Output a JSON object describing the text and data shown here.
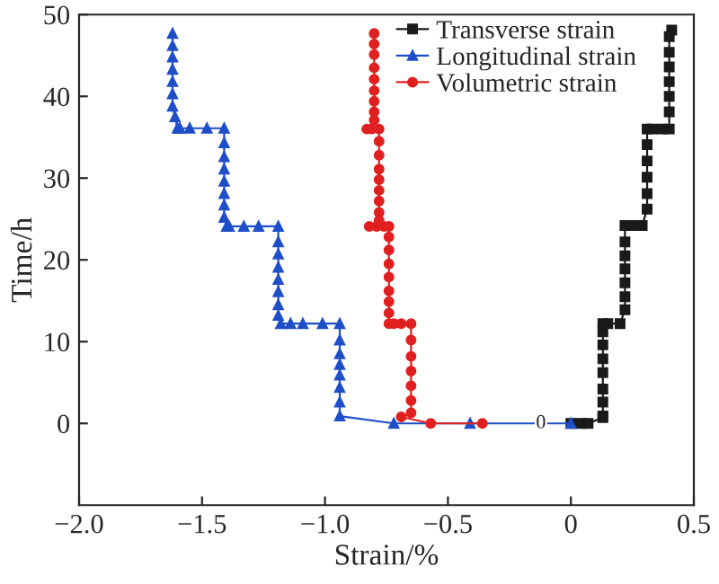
{
  "chart_data": {
    "type": "line",
    "xlabel": "Strain/%",
    "ylabel": "Time/h",
    "xlim": [
      -2.0,
      0.5
    ],
    "ylim": [
      -10,
      50
    ],
    "xticks": [
      {
        "value": -2.0,
        "label": "−2.0"
      },
      {
        "value": -1.5,
        "label": "−1.5"
      },
      {
        "value": -1.0,
        "label": "−1.0"
      },
      {
        "value": -0.5,
        "label": "−0.5"
      },
      0,
      0.5
    ],
    "yticks": [
      0,
      10,
      20,
      30,
      40,
      50
    ],
    "grid": false,
    "legend": "top right",
    "annotations": [
      {
        "text": "0",
        "x": 0,
        "y": 0
      }
    ],
    "series": [
      {
        "name": "Transverse strain",
        "color": "#1a1a1a",
        "marker": "square",
        "x": [
          0,
          0.04,
          0.07,
          0.13,
          0.13,
          0.13,
          0.13,
          0.13,
          0.13,
          0.13,
          0.13,
          0.13,
          0.15,
          0.2,
          0.22,
          0.22,
          0.22,
          0.22,
          0.22,
          0.22,
          0.22,
          0.26,
          0.29,
          0.31,
          0.31,
          0.31,
          0.31,
          0.31,
          0.31,
          0.33,
          0.37,
          0.4,
          0.4,
          0.4,
          0.4,
          0.4,
          0.4,
          0.4,
          0.41
        ],
        "values": [
          0,
          0,
          0,
          0.7,
          0.9,
          2.6,
          4.2,
          6.2,
          7.9,
          9.6,
          11.2,
          12.2,
          12.2,
          12.2,
          13.9,
          15.5,
          17.2,
          18.9,
          20.5,
          22.2,
          24.2,
          24.2,
          24.2,
          26.2,
          28.1,
          30.1,
          32.1,
          34.1,
          36.0,
          36.0,
          36.0,
          36.0,
          38.1,
          40.0,
          41.8,
          43.6,
          45.4,
          47.3,
          48.1
        ]
      },
      {
        "name": "Longitudinal strain",
        "color": "#1f4fc8",
        "marker": "triangle",
        "x": [
          -1.62,
          -1.62,
          -1.62,
          -1.62,
          -1.62,
          -1.62,
          -1.62,
          -1.61,
          -1.6,
          -1.59,
          -1.55,
          -1.48,
          -1.41,
          -1.41,
          -1.41,
          -1.41,
          -1.41,
          -1.41,
          -1.41,
          -1.41,
          -1.4,
          -1.39,
          -1.33,
          -1.27,
          -1.19,
          -1.19,
          -1.19,
          -1.19,
          -1.19,
          -1.19,
          -1.19,
          -1.19,
          -1.18,
          -1.14,
          -1.09,
          -1.01,
          -0.94,
          -0.94,
          -0.94,
          -0.94,
          -0.94,
          -0.94,
          -0.94,
          -0.94,
          -0.72,
          -0.41,
          0
        ],
        "values": [
          47.7,
          46.2,
          44.8,
          43.3,
          41.8,
          40.3,
          38.8,
          37.5,
          36.1,
          36.1,
          36.1,
          36.1,
          36.1,
          34.3,
          32.6,
          31.1,
          29.6,
          28.1,
          26.7,
          25.2,
          24.1,
          24.1,
          24.1,
          24.1,
          24.1,
          22.2,
          20.7,
          19.1,
          17.6,
          16.1,
          14.5,
          13.2,
          12.2,
          12.2,
          12.2,
          12.2,
          12.2,
          10.2,
          8.5,
          7.2,
          5.9,
          4.4,
          2.6,
          0.9,
          0,
          0,
          0
        ]
      },
      {
        "name": "Volumetric strain",
        "color": "#e02020",
        "marker": "circle",
        "x": [
          -0.8,
          -0.8,
          -0.8,
          -0.8,
          -0.8,
          -0.8,
          -0.8,
          -0.8,
          -0.8,
          -0.83,
          -0.81,
          -0.78,
          -0.78,
          -0.78,
          -0.78,
          -0.78,
          -0.78,
          -0.78,
          -0.78,
          -0.78,
          -0.82,
          -0.79,
          -0.76,
          -0.74,
          -0.74,
          -0.74,
          -0.74,
          -0.74,
          -0.74,
          -0.74,
          -0.74,
          -0.74,
          -0.72,
          -0.69,
          -0.65,
          -0.65,
          -0.65,
          -0.65,
          -0.65,
          -0.65,
          -0.65,
          -0.69,
          -0.57,
          -0.36
        ],
        "values": [
          47.7,
          46.4,
          45.1,
          43.5,
          42.1,
          40.7,
          39.4,
          38.1,
          37.1,
          36.0,
          36.0,
          36.0,
          34.5,
          32.8,
          31.1,
          29.8,
          28.5,
          27.2,
          25.8,
          24.8,
          24.1,
          24.1,
          24.1,
          24.1,
          22.8,
          21.2,
          19.5,
          17.9,
          16.2,
          14.9,
          13.5,
          12.2,
          12.2,
          12.2,
          12.2,
          10.2,
          8.2,
          6.4,
          4.6,
          2.8,
          1.3,
          0.8,
          0,
          0
        ]
      }
    ]
  }
}
